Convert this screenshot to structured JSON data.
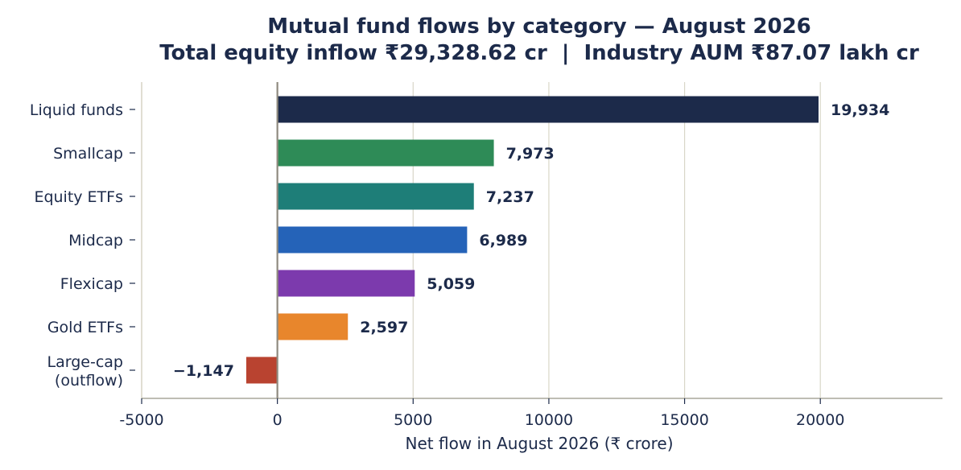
{
  "chart_data": {
    "type": "bar",
    "orientation": "horizontal",
    "title": "Mutual fund flows by category — August 2026",
    "subtitle": "Total equity inflow ₹29,328.62 cr  |  Industry AUM ₹87.07 lakh cr",
    "xlabel": "Net flow in August 2026 (₹ crore)",
    "ylabel": "",
    "xlim": [
      -5000,
      24500
    ],
    "xticks": [
      -5000,
      0,
      5000,
      10000,
      15000,
      20000
    ],
    "xtick_labels": [
      "-5000",
      "0",
      "5000",
      "10000",
      "15000",
      "20000"
    ],
    "grid": "vertical",
    "categories": [
      [
        "Liquid funds"
      ],
      [
        "Smallcap"
      ],
      [
        "Equity ETFs"
      ],
      [
        "Midcap"
      ],
      [
        "Flexicap"
      ],
      [
        "Gold ETFs"
      ],
      [
        "Large-cap",
        "(outflow)"
      ]
    ],
    "values": [
      19934,
      7973,
      7237,
      6989,
      5059,
      2597,
      -1147
    ],
    "value_labels": [
      "19,934",
      "7,973",
      "7,237",
      "6,989",
      "5,059",
      "2,597",
      "−1,147"
    ],
    "colors": [
      "#1c2a4a",
      "#2e8b57",
      "#1e7e78",
      "#2563b8",
      "#7c3aad",
      "#e8862c",
      "#b94330"
    ]
  }
}
